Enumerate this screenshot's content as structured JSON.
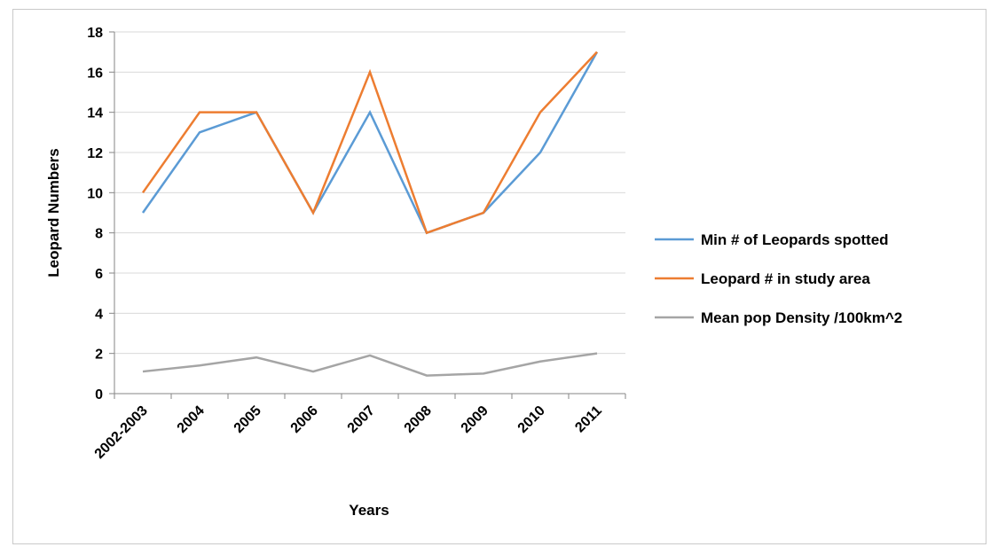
{
  "chart_data": {
    "type": "line",
    "title": "",
    "xlabel": "Years",
    "ylabel": "Leopard Numbers",
    "categories": [
      "2002-2003",
      "2004",
      "2005",
      "2006",
      "2007",
      "2008",
      "2009",
      "2010",
      "2011"
    ],
    "ylim": [
      0,
      18
    ],
    "yticks": [
      0,
      2,
      4,
      6,
      8,
      10,
      12,
      14,
      16,
      18
    ],
    "grid": true,
    "legend_position": "right",
    "series": [
      {
        "name": "Min # of Leopards spotted",
        "color": "#5b9bd5",
        "values": [
          9,
          13,
          14,
          9,
          14,
          8,
          9,
          12,
          17
        ]
      },
      {
        "name": "Leopard # in study area",
        "color": "#ed7d31",
        "values": [
          10,
          14,
          14,
          9,
          16,
          8,
          9,
          14,
          17
        ]
      },
      {
        "name": "Mean pop Density /100km^2",
        "color": "#a5a5a5",
        "values": [
          1.1,
          1.4,
          1.8,
          1.1,
          1.9,
          0.9,
          1.0,
          1.6,
          2.0
        ]
      }
    ]
  }
}
